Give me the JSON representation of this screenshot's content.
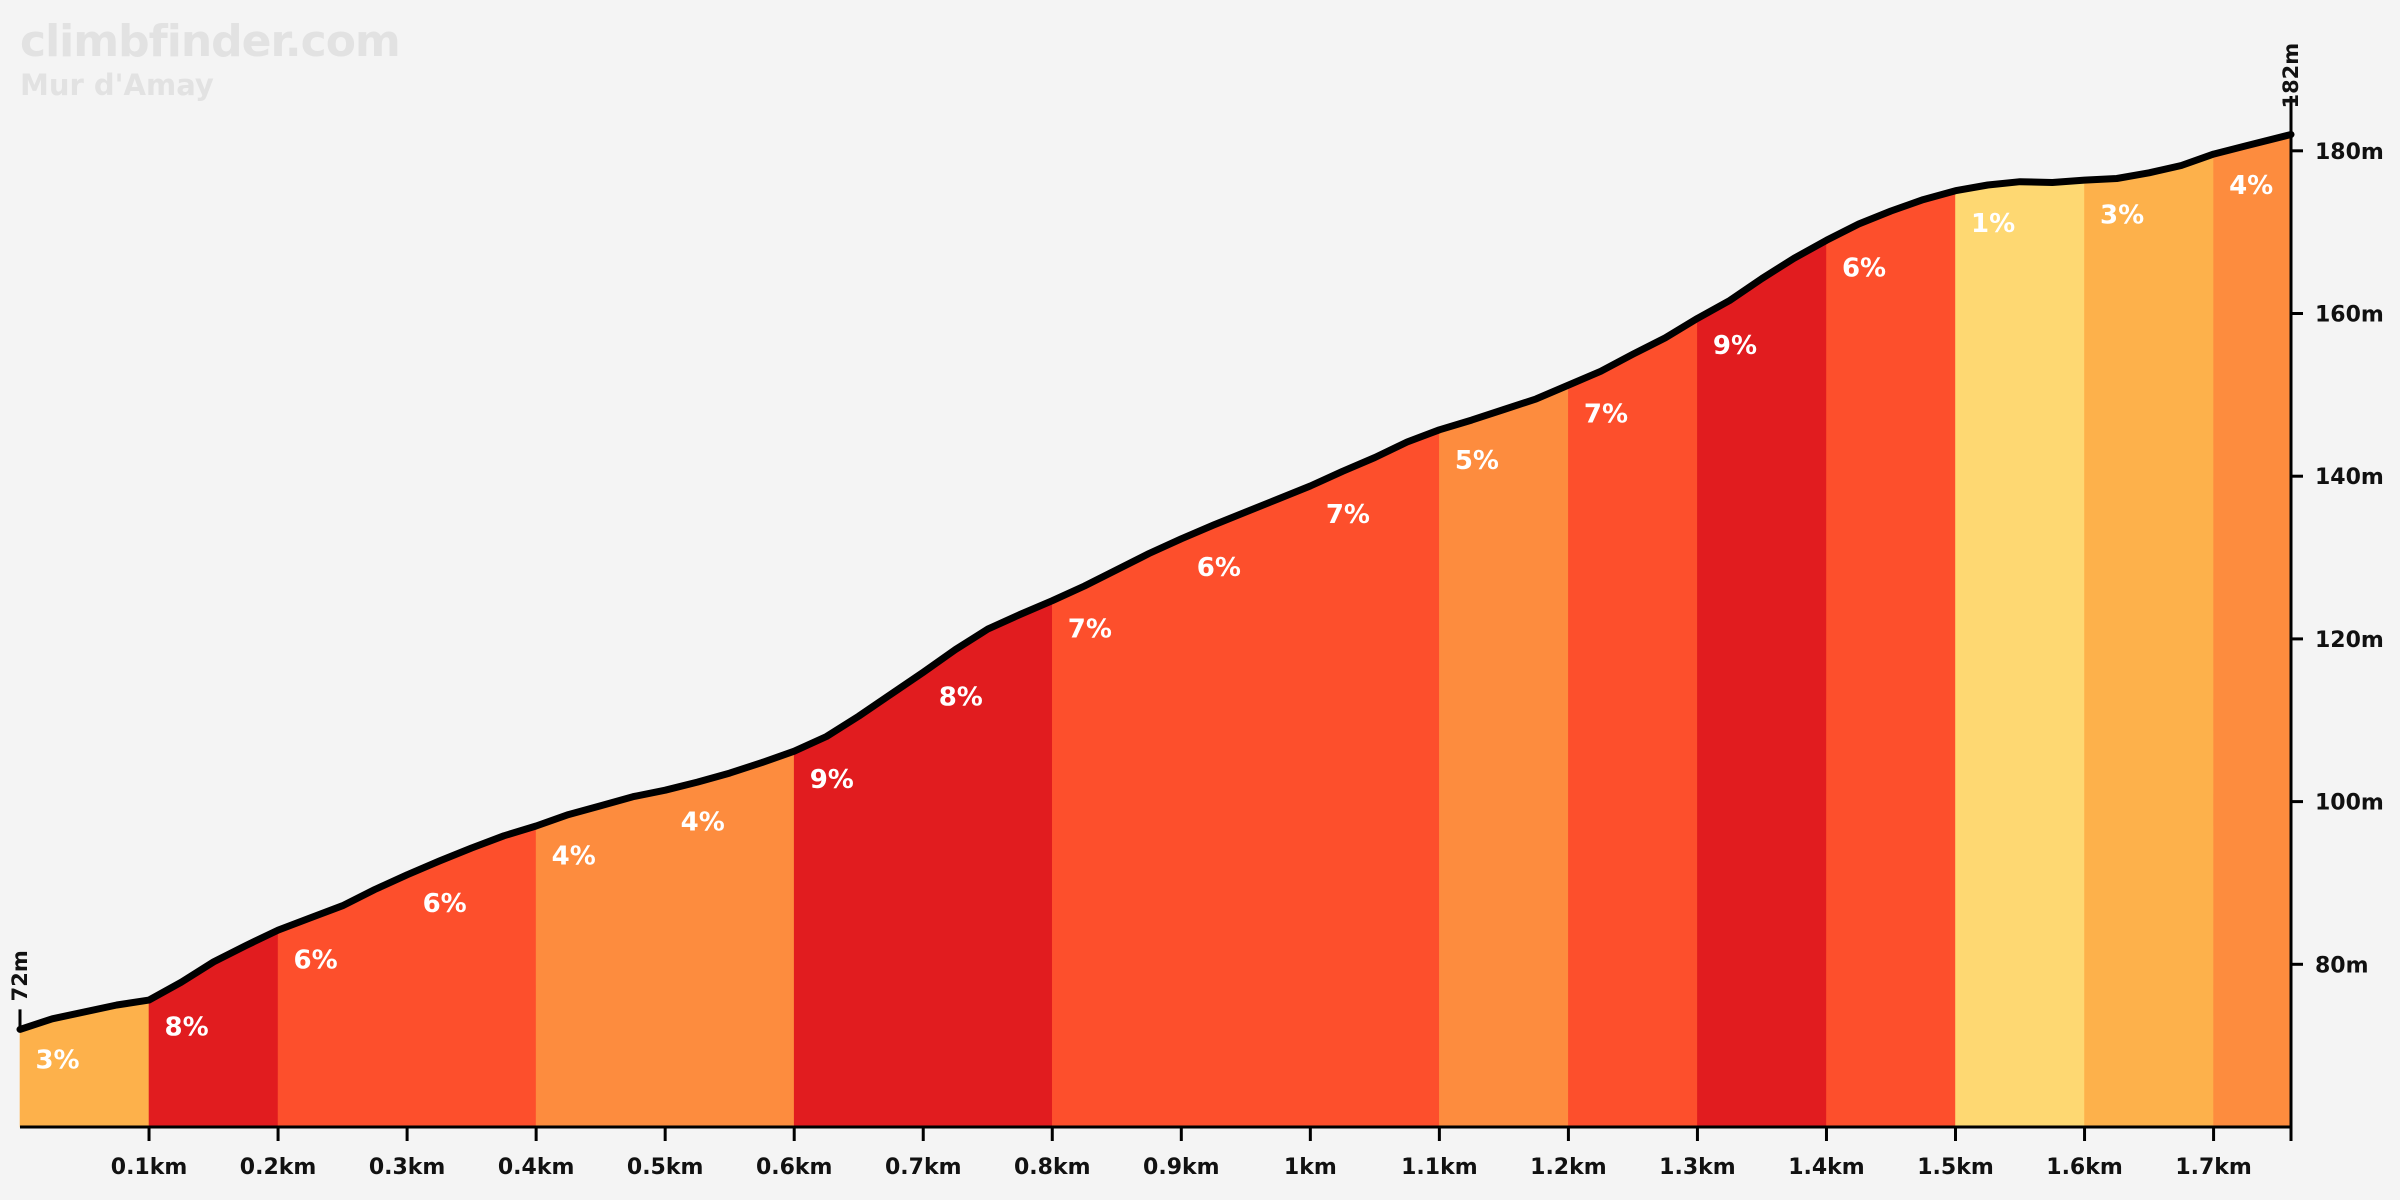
{
  "brand": "climbfinder.com",
  "climb_name": "Mur d'Amay",
  "chart_data": {
    "type": "area",
    "title": "Mur d'Amay",
    "xlabel": "",
    "ylabel": "",
    "xlim": [
      0,
      1.76
    ],
    "ylim": [
      60,
      186
    ],
    "x_ticks": [
      {
        "value": 0.1,
        "label": "0.1km"
      },
      {
        "value": 0.2,
        "label": "0.2km"
      },
      {
        "value": 0.3,
        "label": "0.3km"
      },
      {
        "value": 0.4,
        "label": "0.4km"
      },
      {
        "value": 0.5,
        "label": "0.5km"
      },
      {
        "value": 0.6,
        "label": "0.6km"
      },
      {
        "value": 0.7,
        "label": "0.7km"
      },
      {
        "value": 0.8,
        "label": "0.8km"
      },
      {
        "value": 0.9,
        "label": "0.9km"
      },
      {
        "value": 1.0,
        "label": "1km"
      },
      {
        "value": 1.1,
        "label": "1.1km"
      },
      {
        "value": 1.2,
        "label": "1.2km"
      },
      {
        "value": 1.3,
        "label": "1.3km"
      },
      {
        "value": 1.4,
        "label": "1.4km"
      },
      {
        "value": 1.5,
        "label": "1.5km"
      },
      {
        "value": 1.6,
        "label": "1.6km"
      },
      {
        "value": 1.7,
        "label": "1.7km"
      }
    ],
    "y_ticks": [
      {
        "value": 80,
        "label": "80m"
      },
      {
        "value": 100,
        "label": "100m"
      },
      {
        "value": 120,
        "label": "120m"
      },
      {
        "value": 140,
        "label": "140m"
      },
      {
        "value": 160,
        "label": "160m"
      },
      {
        "value": 180,
        "label": "180m"
      }
    ],
    "start_elevation_label": "72m",
    "end_elevation_label": "182m",
    "profile": [
      [
        0,
        72
      ],
      [
        0.025,
        73.3
      ],
      [
        0.075,
        75
      ],
      [
        0.1,
        75.6
      ],
      [
        0.125,
        77.8
      ],
      [
        0.15,
        80.3
      ],
      [
        0.175,
        82.3
      ],
      [
        0.2,
        84.2
      ],
      [
        0.225,
        85.7
      ],
      [
        0.25,
        87.2
      ],
      [
        0.275,
        89.2
      ],
      [
        0.3,
        91
      ],
      [
        0.325,
        92.7
      ],
      [
        0.35,
        94.3
      ],
      [
        0.375,
        95.8
      ],
      [
        0.4,
        97
      ],
      [
        0.425,
        98.4
      ],
      [
        0.45,
        99.5
      ],
      [
        0.475,
        100.6
      ],
      [
        0.5,
        101.4
      ],
      [
        0.525,
        102.4
      ],
      [
        0.55,
        103.5
      ],
      [
        0.575,
        104.8
      ],
      [
        0.6,
        106.2
      ],
      [
        0.625,
        108
      ],
      [
        0.65,
        110.5
      ],
      [
        0.675,
        113.2
      ],
      [
        0.7,
        115.9
      ],
      [
        0.725,
        118.7
      ],
      [
        0.75,
        121.2
      ],
      [
        0.775,
        123
      ],
      [
        0.8,
        124.7
      ],
      [
        0.825,
        126.5
      ],
      [
        0.85,
        128.5
      ],
      [
        0.875,
        130.5
      ],
      [
        0.9,
        132.3
      ],
      [
        0.925,
        134
      ],
      [
        0.95,
        135.6
      ],
      [
        0.975,
        137.2
      ],
      [
        1.0,
        138.8
      ],
      [
        1.025,
        140.6
      ],
      [
        1.05,
        142.3
      ],
      [
        1.075,
        144.2
      ],
      [
        1.1,
        145.7
      ],
      [
        1.125,
        146.9
      ],
      [
        1.15,
        148.2
      ],
      [
        1.175,
        149.5
      ],
      [
        1.2,
        151.2
      ],
      [
        1.225,
        152.9
      ],
      [
        1.25,
        155
      ],
      [
        1.275,
        157
      ],
      [
        1.3,
        159.4
      ],
      [
        1.325,
        161.6
      ],
      [
        1.35,
        164.3
      ],
      [
        1.375,
        166.8
      ],
      [
        1.4,
        169
      ],
      [
        1.425,
        171
      ],
      [
        1.45,
        172.6
      ],
      [
        1.475,
        174
      ],
      [
        1.5,
        175.1
      ],
      [
        1.525,
        175.8
      ],
      [
        1.55,
        176.2
      ],
      [
        1.575,
        176.1
      ],
      [
        1.6,
        176.4
      ],
      [
        1.625,
        176.6
      ],
      [
        1.65,
        177.3
      ],
      [
        1.675,
        178.2
      ],
      [
        1.7,
        179.6
      ],
      [
        1.725,
        180.6
      ],
      [
        1.76,
        182
      ]
    ],
    "segments": [
      {
        "start": 0.0,
        "end": 0.1,
        "gradient": 3,
        "label": "3%",
        "color": "#fdb14b"
      },
      {
        "start": 0.1,
        "end": 0.2,
        "gradient": 8,
        "label": "8%",
        "color": "#e11c1f"
      },
      {
        "start": 0.2,
        "end": 0.4,
        "gradient": 6,
        "label": "6%",
        "color": "#fd4f2c"
      },
      {
        "start": 0.4,
        "end": 0.6,
        "gradient": 4,
        "label": "4%",
        "color": "#fd8c3e"
      },
      {
        "start": 0.6,
        "end": 0.8,
        "gradient": 9,
        "label": "9%",
        "color": "#e11c1f"
      },
      {
        "start": 0.8,
        "end": 1.1,
        "gradient": 7,
        "label": "7%",
        "color": "#fd4f2c"
      },
      {
        "start": 1.1,
        "end": 1.2,
        "gradient": 5,
        "label": "5%",
        "color": "#fd8c3e"
      },
      {
        "start": 1.2,
        "end": 1.3,
        "gradient": 7,
        "label": "7%",
        "color": "#fd4f2c"
      },
      {
        "start": 1.3,
        "end": 1.4,
        "gradient": 9,
        "label": "9%",
        "color": "#e11c1f"
      },
      {
        "start": 1.4,
        "end": 1.5,
        "gradient": 6,
        "label": "6%",
        "color": "#fd4f2c"
      },
      {
        "start": 1.5,
        "end": 1.6,
        "gradient": 1,
        "label": "1%",
        "color": "#fed872"
      },
      {
        "start": 1.6,
        "end": 1.7,
        "gradient": 3,
        "label": "3%",
        "color": "#fdb14b"
      },
      {
        "start": 1.7,
        "end": 1.76,
        "gradient": 4,
        "label": "4%",
        "color": "#fd8c3e"
      }
    ],
    "gradient_labels": [
      {
        "x": 0.012,
        "label": "3%"
      },
      {
        "x": 0.112,
        "label": "8%"
      },
      {
        "x": 0.212,
        "label": "6%"
      },
      {
        "x": 0.312,
        "label": "6%"
      },
      {
        "x": 0.412,
        "label": "4%"
      },
      {
        "x": 0.512,
        "label": "4%"
      },
      {
        "x": 0.612,
        "label": "9%"
      },
      {
        "x": 0.712,
        "label": "8%"
      },
      {
        "x": 0.812,
        "label": "7%"
      },
      {
        "x": 0.912,
        "label": "6%"
      },
      {
        "x": 1.012,
        "label": "7%"
      },
      {
        "x": 1.112,
        "label": "5%"
      },
      {
        "x": 1.212,
        "label": "7%"
      },
      {
        "x": 1.312,
        "label": "9%"
      },
      {
        "x": 1.412,
        "label": "6%"
      },
      {
        "x": 1.512,
        "label": "1%"
      },
      {
        "x": 1.612,
        "label": "3%"
      },
      {
        "x": 1.712,
        "label": "4%"
      }
    ],
    "colors": {
      "line": "#000000",
      "label_text": "#ffffff",
      "axis_text": "#111111",
      "background": "#f4f4f4"
    }
  }
}
